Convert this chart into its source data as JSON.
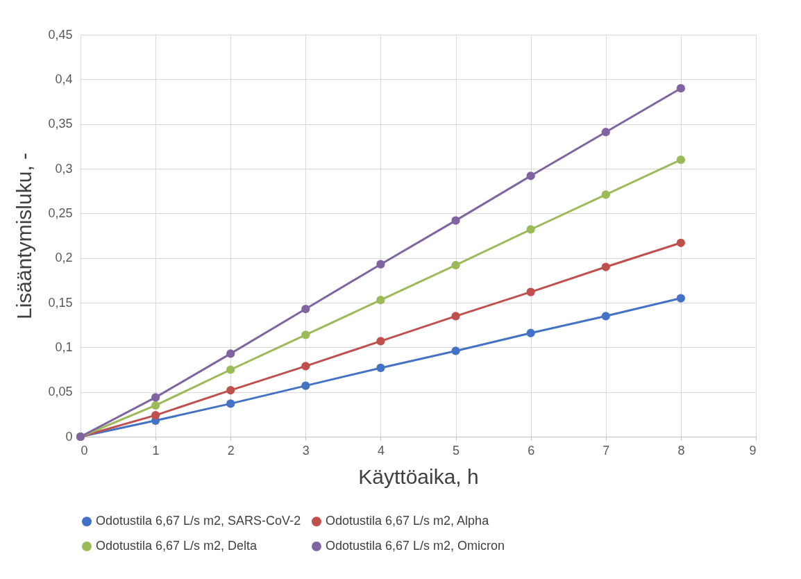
{
  "chart_data": {
    "type": "line",
    "xlabel": "Käyttöaika, h",
    "ylabel": "Lisääntymisluku, -",
    "x": [
      0,
      1,
      2,
      3,
      4,
      5,
      6,
      7,
      8
    ],
    "series": [
      {
        "name": "Odotustila 6,67 L/s m2, SARS-CoV-2",
        "color": "#4472c4",
        "values": [
          0,
          0.018,
          0.037,
          0.057,
          0.077,
          0.096,
          0.116,
          0.135,
          0.155
        ]
      },
      {
        "name": "Odotustila 6,67 L/s m2, Alpha",
        "color": "#c0504d",
        "values": [
          0,
          0.024,
          0.052,
          0.079,
          0.107,
          0.135,
          0.162,
          0.19,
          0.217
        ]
      },
      {
        "name": "Odotustila 6,67 L/s m2, Delta",
        "color": "#9bbb59",
        "values": [
          0,
          0.035,
          0.075,
          0.114,
          0.153,
          0.192,
          0.232,
          0.271,
          0.31
        ]
      },
      {
        "name": "Odotustila 6,67 L/s m2, Omicron",
        "color": "#8064a2",
        "values": [
          0,
          0.044,
          0.093,
          0.143,
          0.193,
          0.242,
          0.292,
          0.341,
          0.39
        ]
      }
    ],
    "xlim": [
      0,
      9
    ],
    "xticks": [
      0,
      1,
      2,
      3,
      4,
      5,
      6,
      7,
      8,
      9
    ],
    "ylim": [
      0,
      0.45
    ],
    "yticks": [
      0,
      {
        "value": 0.05,
        "label": "0,05"
      },
      {
        "value": 0.1,
        "label": "0,1"
      },
      {
        "value": 0.15,
        "label": "0,15"
      },
      {
        "value": 0.2,
        "label": "0,2"
      },
      {
        "value": 0.25,
        "label": "0,25"
      },
      {
        "value": 0.3,
        "label": "0,3"
      },
      {
        "value": 0.35,
        "label": "0,35"
      },
      {
        "value": 0.4,
        "label": "0,4"
      },
      {
        "value": 0.45,
        "label": "0,45"
      }
    ],
    "grid": true,
    "legend": "bottom",
    "marker": "circle",
    "line_style": "solid"
  }
}
